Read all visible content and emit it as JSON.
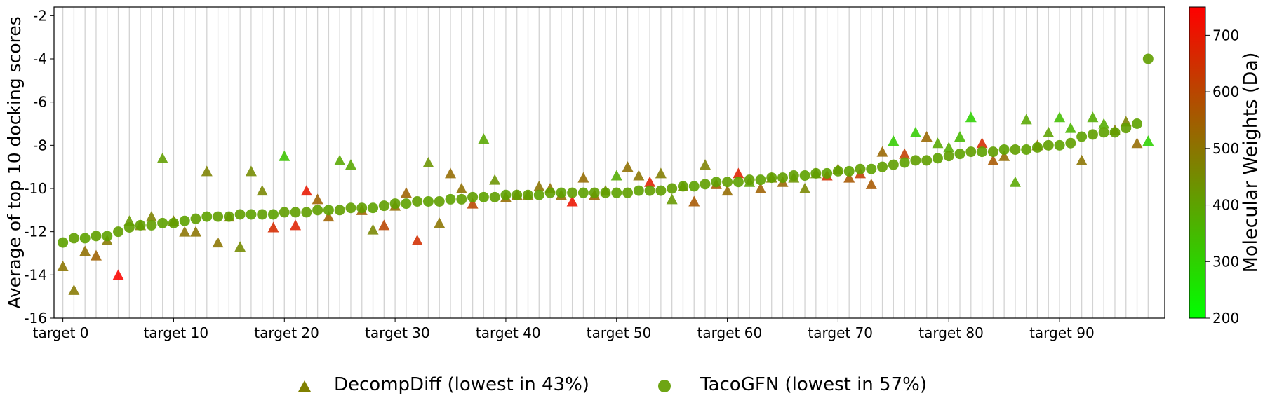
{
  "chart_data": {
    "type": "scatter",
    "ylabel": "Average of top 10 docking scores",
    "ylim": [
      -16,
      -1.6
    ],
    "yticks": [
      -16,
      -14,
      -12,
      -10,
      -8,
      -6,
      -4,
      -2
    ],
    "ytick_labels": [
      "-16",
      "-14",
      "-12",
      "-10",
      "-8",
      "-6",
      "-4",
      "-2"
    ],
    "xlim": [
      -0.8,
      99.5
    ],
    "xticks": [
      0,
      10,
      20,
      30,
      40,
      50,
      60,
      70,
      80,
      90
    ],
    "xtick_labels": [
      "target 0",
      "target 10",
      "target 20",
      "target 30",
      "target 40",
      "target 50",
      "target 60",
      "target 70",
      "target 80",
      "target 90"
    ],
    "grid": "vertical lines at every target",
    "legend_position": "bottom-center, below plot",
    "colorbar": {
      "label": "Molecular Weights (Da)",
      "min": 200,
      "max": 750,
      "ticks": [
        200,
        300,
        400,
        500,
        600,
        700
      ],
      "tick_labels": [
        "200",
        "300",
        "400",
        "500",
        "600",
        "700"
      ],
      "colormap": [
        "#00ff00",
        "#ff0000"
      ]
    },
    "series": [
      {
        "name": "DecompDiff (lowest in 43%)",
        "marker": "triangle",
        "legend_color": "#808000",
        "x": [
          0,
          1,
          2,
          3,
          4,
          5,
          6,
          7,
          8,
          9,
          10,
          11,
          12,
          13,
          14,
          15,
          16,
          17,
          18,
          19,
          20,
          21,
          22,
          23,
          24,
          25,
          26,
          27,
          28,
          29,
          30,
          31,
          32,
          33,
          34,
          35,
          36,
          37,
          38,
          39,
          40,
          41,
          42,
          43,
          44,
          45,
          46,
          47,
          48,
          49,
          50,
          51,
          52,
          53,
          54,
          55,
          56,
          57,
          58,
          59,
          60,
          61,
          62,
          63,
          64,
          65,
          66,
          67,
          68,
          69,
          70,
          71,
          72,
          73,
          74,
          75,
          76,
          77,
          78,
          79,
          80,
          81,
          82,
          83,
          84,
          85,
          86,
          87,
          88,
          89,
          90,
          91,
          92,
          93,
          94,
          95,
          96,
          97,
          98
        ],
        "y": [
          -13.6,
          -14.7,
          -12.9,
          -13.1,
          -12.4,
          -14.0,
          -11.5,
          -11.7,
          -11.3,
          -8.6,
          -11.5,
          -12.0,
          -12.0,
          -9.2,
          -12.5,
          -11.3,
          -12.7,
          -9.2,
          -10.1,
          -11.8,
          -8.5,
          -11.7,
          -10.1,
          -10.5,
          -11.3,
          -8.7,
          -8.9,
          -11.0,
          -11.9,
          -11.7,
          -10.8,
          -10.2,
          -12.4,
          -8.8,
          -11.6,
          -9.3,
          -10.0,
          -10.7,
          -7.7,
          -9.6,
          -10.4,
          -10.3,
          -10.3,
          -9.9,
          -10.0,
          -10.3,
          -10.6,
          -9.5,
          -10.3,
          -10.1,
          -9.4,
          -9.0,
          -9.4,
          -9.7,
          -9.3,
          -10.5,
          -9.9,
          -10.6,
          -8.9,
          -9.8,
          -10.1,
          -9.3,
          -9.7,
          -10.0,
          -9.5,
          -9.7,
          -9.5,
          -10.0,
          -9.3,
          -9.4,
          -9.1,
          -9.5,
          -9.3,
          -9.8,
          -8.3,
          -7.8,
          -8.4,
          -7.4,
          -7.6,
          -7.9,
          -8.1,
          -7.6,
          -6.7,
          -7.9,
          -8.7,
          -8.5,
          -9.7,
          -6.8,
          -8.0,
          -7.4,
          -6.7,
          -7.2,
          -8.7,
          -6.7,
          -7.0,
          -7.3,
          -6.9,
          -7.9,
          -7.8
        ],
        "mw": [
          500,
          490,
          510,
          540,
          490,
          740,
          420,
          460,
          470,
          410,
          470,
          500,
          500,
          470,
          500,
          490,
          450,
          450,
          460,
          660,
          330,
          680,
          700,
          540,
          540,
          390,
          390,
          540,
          460,
          600,
          520,
          540,
          650,
          430,
          500,
          520,
          510,
          600,
          390,
          430,
          520,
          500,
          480,
          500,
          510,
          520,
          710,
          520,
          540,
          450,
          380,
          510,
          500,
          680,
          480,
          420,
          460,
          560,
          470,
          560,
          520,
          680,
          400,
          540,
          470,
          530,
          430,
          460,
          430,
          650,
          460,
          560,
          620,
          560,
          530,
          310,
          620,
          310,
          530,
          390,
          380,
          350,
          300,
          660,
          560,
          520,
          390,
          390,
          520,
          400,
          340,
          360,
          500,
          380,
          380,
          480,
          470,
          520,
          300
        ]
      },
      {
        "name": "TacoGFN (lowest in 57%)",
        "marker": "circle",
        "legend_color": "#6ea514",
        "x": [
          0,
          1,
          2,
          3,
          4,
          5,
          6,
          7,
          8,
          9,
          10,
          11,
          12,
          13,
          14,
          15,
          16,
          17,
          18,
          19,
          20,
          21,
          22,
          23,
          24,
          25,
          26,
          27,
          28,
          29,
          30,
          31,
          32,
          33,
          34,
          35,
          36,
          37,
          38,
          39,
          40,
          41,
          42,
          43,
          44,
          45,
          46,
          47,
          48,
          49,
          50,
          51,
          52,
          53,
          54,
          55,
          56,
          57,
          58,
          59,
          60,
          61,
          62,
          63,
          64,
          65,
          66,
          67,
          68,
          69,
          70,
          71,
          72,
          73,
          74,
          75,
          76,
          77,
          78,
          79,
          80,
          81,
          82,
          83,
          84,
          85,
          86,
          87,
          88,
          89,
          90,
          91,
          92,
          93,
          94,
          95,
          96,
          97,
          98
        ],
        "y": [
          -12.5,
          -12.3,
          -12.3,
          -12.2,
          -12.2,
          -12.0,
          -11.8,
          -11.7,
          -11.7,
          -11.6,
          -11.6,
          -11.5,
          -11.4,
          -11.3,
          -11.3,
          -11.3,
          -11.2,
          -11.2,
          -11.2,
          -11.2,
          -11.1,
          -11.1,
          -11.1,
          -11.0,
          -11.0,
          -11.0,
          -10.9,
          -10.9,
          -10.9,
          -10.8,
          -10.7,
          -10.7,
          -10.6,
          -10.6,
          -10.6,
          -10.5,
          -10.5,
          -10.4,
          -10.4,
          -10.4,
          -10.3,
          -10.3,
          -10.3,
          -10.3,
          -10.2,
          -10.2,
          -10.2,
          -10.2,
          -10.2,
          -10.2,
          -10.2,
          -10.2,
          -10.1,
          -10.1,
          -10.1,
          -10.0,
          -9.9,
          -9.9,
          -9.8,
          -9.7,
          -9.7,
          -9.7,
          -9.6,
          -9.6,
          -9.5,
          -9.5,
          -9.4,
          -9.4,
          -9.3,
          -9.3,
          -9.2,
          -9.2,
          -9.1,
          -9.1,
          -9.0,
          -8.9,
          -8.8,
          -8.7,
          -8.7,
          -8.6,
          -8.5,
          -8.4,
          -8.3,
          -8.3,
          -8.3,
          -8.2,
          -8.2,
          -8.2,
          -8.1,
          -8.0,
          -8.0,
          -7.9,
          -7.6,
          -7.5,
          -7.4,
          -7.4,
          -7.2,
          -7.0,
          -4.0
        ],
        "mw": [
          400,
          410,
          400,
          410,
          400,
          410,
          410,
          410,
          410,
          400,
          410,
          400,
          410,
          400,
          410,
          410,
          410,
          400,
          410,
          400,
          410,
          410,
          410,
          410,
          400,
          410,
          410,
          410,
          400,
          410,
          410,
          400,
          410,
          400,
          410,
          400,
          410,
          410,
          400,
          410,
          400,
          410,
          410,
          400,
          410,
          400,
          410,
          400,
          410,
          410,
          400,
          410,
          400,
          410,
          410,
          410,
          410,
          400,
          410,
          400,
          410,
          400,
          410,
          400,
          410,
          410,
          410,
          400,
          410,
          400,
          410,
          400,
          410,
          400,
          410,
          410,
          400,
          410,
          410,
          400,
          410,
          400,
          410,
          400,
          410,
          400,
          410,
          400,
          410,
          410,
          400,
          410,
          400,
          410,
          400,
          410,
          410,
          400,
          410
        ]
      }
    ]
  }
}
